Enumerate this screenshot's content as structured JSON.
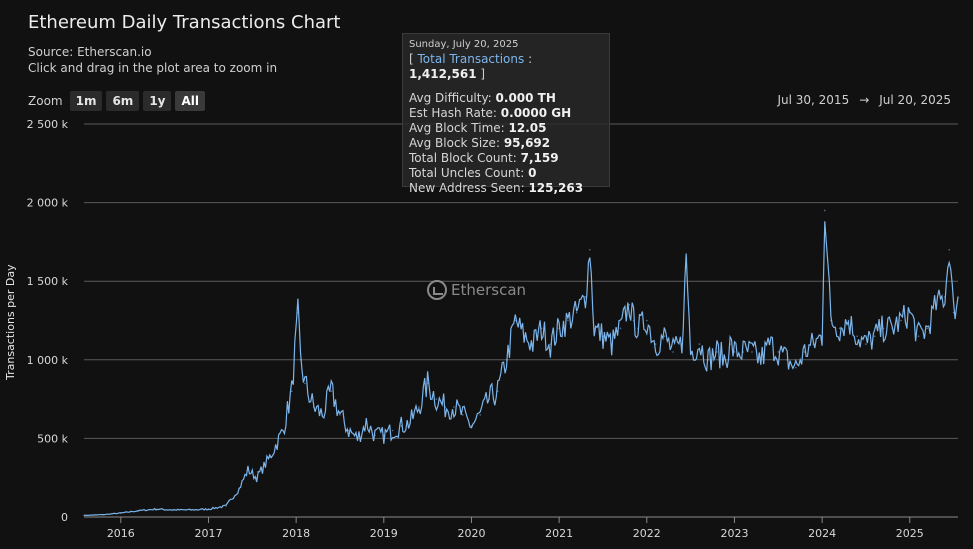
{
  "header": {
    "title": "Ethereum Daily Transactions Chart",
    "source": "Source: Etherscan.io",
    "hint": "Click and drag in the plot area to zoom in"
  },
  "zoom": {
    "label": "Zoom",
    "buttons": [
      "1m",
      "6m",
      "1y",
      "All"
    ],
    "active": "All"
  },
  "range": {
    "from": "Jul 30, 2015",
    "arrow": "→",
    "to": "Jul 20, 2025"
  },
  "tooltip": {
    "date": "Sunday, July 20, 2025",
    "bracket_open": "[",
    "series_name": "Total Transactions",
    "separator": ":",
    "value": "1,412,561",
    "bracket_close": "]",
    "rows": [
      {
        "label": "Avg Difficulty:",
        "value": "0.000 TH"
      },
      {
        "label": "Est Hash Rate:",
        "value": "0.0000 GH"
      },
      {
        "label": "Avg Block Time:",
        "value": "12.05"
      },
      {
        "label": "Avg Block Size:",
        "value": "95,692"
      },
      {
        "label": "Total Block Count:",
        "value": "7,159"
      },
      {
        "label": "Total Uncles Count:",
        "value": "0"
      },
      {
        "label": "New Address Seen:",
        "value": "125,263"
      }
    ]
  },
  "watermark": {
    "text": "Etherscan",
    "icon": "etherscan-logo-icon"
  },
  "colors": {
    "series": "#7cb5ec",
    "background": "#111111",
    "grid": "#5a5a5a"
  },
  "chart_data": {
    "type": "line",
    "title": "Ethereum Daily Transactions Chart",
    "ylabel": "Transactions per Day",
    "xlabel": "",
    "ylim": [
      0,
      2500000
    ],
    "xlim": [
      2015.58,
      2025.55
    ],
    "grid": true,
    "legend": "none",
    "y_ticks": [
      {
        "value": 0,
        "label": "0"
      },
      {
        "value": 500000,
        "label": "500 k"
      },
      {
        "value": 1000000,
        "label": "1 000 k"
      },
      {
        "value": 1500000,
        "label": "1 500 k"
      },
      {
        "value": 2000000,
        "label": "2 000 k"
      },
      {
        "value": 2500000,
        "label": "2 500 k"
      }
    ],
    "x_ticks": [
      "2016",
      "2017",
      "2018",
      "2019",
      "2020",
      "2021",
      "2022",
      "2023",
      "2024",
      "2025"
    ],
    "series": [
      {
        "name": "Total Transactions",
        "x": [
          2015.58,
          2015.8,
          2016.0,
          2016.2,
          2016.4,
          2016.6,
          2016.8,
          2017.0,
          2017.2,
          2017.35,
          2017.45,
          2017.55,
          2017.7,
          2017.85,
          2017.95,
          2018.02,
          2018.05,
          2018.1,
          2018.2,
          2018.3,
          2018.4,
          2018.5,
          2018.6,
          2018.7,
          2018.8,
          2018.9,
          2019.0,
          2019.1,
          2019.2,
          2019.3,
          2019.4,
          2019.5,
          2019.6,
          2019.7,
          2019.8,
          2019.9,
          2020.0,
          2020.1,
          2020.2,
          2020.3,
          2020.4,
          2020.5,
          2020.6,
          2020.7,
          2020.8,
          2020.9,
          2021.0,
          2021.1,
          2021.2,
          2021.3,
          2021.35,
          2021.4,
          2021.5,
          2021.6,
          2021.7,
          2021.8,
          2021.85,
          2021.9,
          2022.0,
          2022.1,
          2022.2,
          2022.3,
          2022.4,
          2022.45,
          2022.5,
          2022.6,
          2022.7,
          2022.8,
          2022.9,
          2022.95,
          2023.0,
          2023.1,
          2023.2,
          2023.3,
          2023.4,
          2023.5,
          2023.6,
          2023.7,
          2023.8,
          2023.9,
          2024.0,
          2024.03,
          2024.1,
          2024.2,
          2024.3,
          2024.4,
          2024.5,
          2024.6,
          2024.7,
          2024.8,
          2024.9,
          2025.0,
          2025.1,
          2025.2,
          2025.3,
          2025.4,
          2025.45,
          2025.5,
          2025.55
        ],
        "y": [
          10000,
          15000,
          25000,
          40000,
          50000,
          45000,
          45000,
          50000,
          70000,
          180000,
          300000,
          250000,
          380000,
          550000,
          800000,
          1300000,
          1000000,
          850000,
          700000,
          650000,
          800000,
          650000,
          550000,
          500000,
          600000,
          520000,
          520000,
          550000,
          580000,
          600000,
          700000,
          850000,
          750000,
          700000,
          700000,
          650000,
          580000,
          650000,
          750000,
          800000,
          1000000,
          1250000,
          1150000,
          1100000,
          1200000,
          1100000,
          1200000,
          1250000,
          1300000,
          1400000,
          1700000,
          1200000,
          1150000,
          1100000,
          1200000,
          1350000,
          1250000,
          1200000,
          1250000,
          1100000,
          1150000,
          1050000,
          1100000,
          1650000,
          1050000,
          1100000,
          1000000,
          1050000,
          1000000,
          1100000,
          1050000,
          1050000,
          1050000,
          1000000,
          1100000,
          1050000,
          1000000,
          950000,
          1050000,
          1100000,
          1150000,
          1950000,
          1250000,
          1200000,
          1250000,
          1150000,
          1100000,
          1150000,
          1200000,
          1200000,
          1250000,
          1300000,
          1150000,
          1200000,
          1350000,
          1400000,
          1700000,
          1300000,
          1400000
        ]
      }
    ]
  }
}
